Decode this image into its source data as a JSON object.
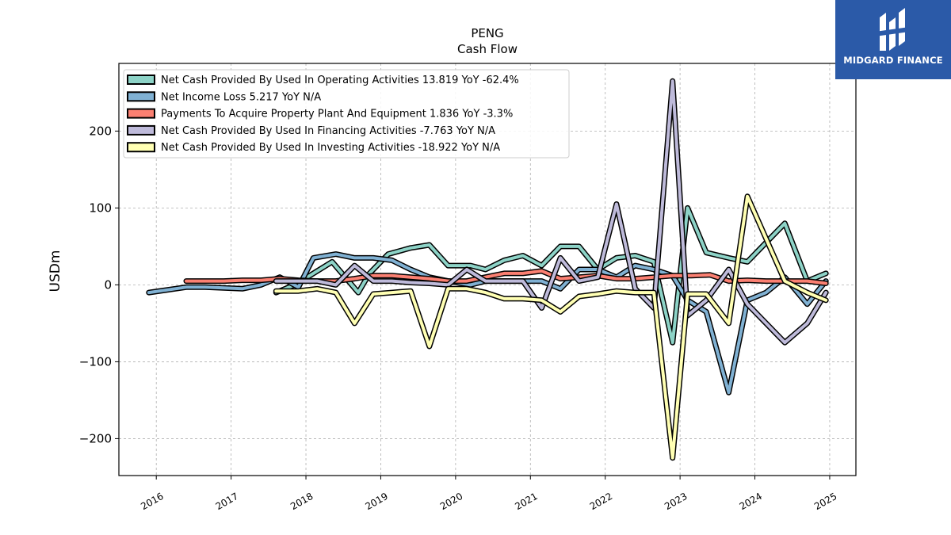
{
  "brand": {
    "name": "MIDGARD FINANCE",
    "bg_color": "#2b5aa8"
  },
  "chart_data": {
    "type": "line",
    "title": "PENG",
    "subtitle": "Cash Flow",
    "ylabel": "USDm",
    "xlabel": "",
    "xlim": [
      2015.5,
      2025.35
    ],
    "ylim": [
      -248,
      288
    ],
    "yticks": [
      -200,
      -100,
      0,
      100,
      200
    ],
    "ytick_labels": [
      "−200",
      "−100",
      "0",
      "100",
      "200"
    ],
    "xticks": [
      2016,
      2017,
      2018,
      2019,
      2020,
      2021,
      2022,
      2023,
      2024,
      2025
    ],
    "xtick_labels": [
      "2016",
      "2017",
      "2018",
      "2019",
      "2020",
      "2021",
      "2022",
      "2023",
      "2024",
      "2025"
    ],
    "grid": true,
    "legend_position": "top-left",
    "series": [
      {
        "name": "Net Cash Provided By Used In Operating Activities",
        "legend_label": "Net Cash Provided By Used In Operating Activities  13.819 YoY -62.4%",
        "color": "#8dd3c7",
        "x": [
          2017.6,
          2017.85,
          2018.1,
          2018.35,
          2018.7,
          2018.85,
          2019.1,
          2019.4,
          2019.65,
          2019.9,
          2020.2,
          2020.4,
          2020.65,
          2020.9,
          2021.15,
          2021.4,
          2021.65,
          2021.9,
          2022.15,
          2022.4,
          2022.65,
          2022.9,
          2023.1,
          2023.35,
          2023.65,
          2023.9,
          2024.15,
          2024.4,
          2024.7,
          2024.95
        ],
        "y": [
          -10,
          0,
          15,
          30,
          -10,
          15,
          40,
          48,
          52,
          25,
          25,
          20,
          32,
          38,
          25,
          50,
          50,
          20,
          35,
          38,
          30,
          -75,
          100,
          42,
          35,
          30,
          55,
          80,
          5,
          15
        ]
      },
      {
        "name": "Net Income Loss",
        "legend_label": "Net Income Loss  5.217 YoY N/A",
        "color": "#80b1d3",
        "x": [
          2015.9,
          2016.4,
          2016.65,
          2016.9,
          2017.15,
          2017.4,
          2017.65,
          2017.9,
          2018.1,
          2018.4,
          2018.65,
          2018.9,
          2019.15,
          2019.4,
          2019.65,
          2019.9,
          2020.2,
          2020.4,
          2020.65,
          2020.9,
          2021.15,
          2021.4,
          2021.65,
          2021.9,
          2022.15,
          2022.4,
          2022.65,
          2022.9,
          2023.1,
          2023.35,
          2023.65,
          2023.9,
          2024.15,
          2024.4,
          2024.7,
          2024.95
        ],
        "y": [
          -10,
          -3,
          -3,
          -4,
          -5,
          0,
          10,
          -3,
          35,
          40,
          35,
          35,
          32,
          20,
          10,
          5,
          0,
          5,
          5,
          5,
          5,
          -5,
          20,
          20,
          10,
          25,
          20,
          12,
          -20,
          -35,
          -140,
          -20,
          -10,
          10,
          -25,
          5
        ]
      },
      {
        "name": "Payments To Acquire Property Plant And Equipment",
        "legend_label": "Payments To Acquire Property Plant And Equipment  1.836 YoY -3.3%",
        "color": "#fb8072",
        "x": [
          2016.4,
          2016.65,
          2016.9,
          2017.15,
          2017.4,
          2017.65,
          2017.9,
          2018.15,
          2018.4,
          2018.65,
          2018.9,
          2019.15,
          2019.4,
          2019.65,
          2019.9,
          2020.15,
          2020.4,
          2020.65,
          2020.9,
          2021.15,
          2021.4,
          2021.65,
          2021.9,
          2022.15,
          2022.4,
          2022.65,
          2022.9,
          2023.15,
          2023.4,
          2023.65,
          2023.9,
          2024.15,
          2024.4,
          2024.7,
          2024.95
        ],
        "y": [
          5,
          5,
          5,
          6,
          6,
          8,
          6,
          5,
          5,
          8,
          12,
          12,
          10,
          8,
          5,
          5,
          10,
          15,
          15,
          18,
          8,
          10,
          12,
          8,
          8,
          10,
          12,
          12,
          13,
          5,
          6,
          5,
          5,
          5,
          2
        ]
      },
      {
        "name": "Net Cash Provided By Used In Financing Activities",
        "legend_label": "Net Cash Provided By Used In Financing Activities  -7.763 YoY N/A",
        "color": "#bebada",
        "x": [
          2017.6,
          2017.9,
          2018.15,
          2018.4,
          2018.65,
          2018.9,
          2019.15,
          2019.4,
          2019.65,
          2019.9,
          2020.15,
          2020.4,
          2020.65,
          2020.9,
          2021.15,
          2021.4,
          2021.65,
          2021.9,
          2022.15,
          2022.4,
          2022.65,
          2022.9,
          2023.1,
          2023.35,
          2023.65,
          2023.9,
          2024.15,
          2024.4,
          2024.7,
          2024.95
        ],
        "y": [
          5,
          5,
          5,
          0,
          25,
          5,
          5,
          3,
          2,
          0,
          20,
          5,
          5,
          5,
          -30,
          35,
          5,
          10,
          105,
          -5,
          -30,
          265,
          -40,
          -20,
          20,
          -25,
          -50,
          -75,
          -50,
          -10
        ]
      },
      {
        "name": "Net Cash Provided By Used In Investing Activities",
        "legend_label": "Net Cash Provided By Used In Investing Activities  -18.922 YoY N/A",
        "color": "#ffffb3",
        "x": [
          2017.6,
          2017.9,
          2018.15,
          2018.4,
          2018.65,
          2018.9,
          2019.15,
          2019.4,
          2019.65,
          2019.9,
          2020.15,
          2020.4,
          2020.65,
          2020.9,
          2021.15,
          2021.4,
          2021.65,
          2021.9,
          2022.15,
          2022.4,
          2022.65,
          2022.9,
          2023.1,
          2023.35,
          2023.65,
          2023.9,
          2024.15,
          2024.4,
          2024.7,
          2024.95
        ],
        "y": [
          -8,
          -8,
          -5,
          -10,
          -50,
          -12,
          -10,
          -8,
          -80,
          -5,
          -5,
          -10,
          -18,
          -18,
          -20,
          -35,
          -15,
          -12,
          -8,
          -10,
          -10,
          -225,
          -12,
          -12,
          -50,
          115,
          60,
          5,
          -10,
          -20
        ]
      }
    ]
  }
}
